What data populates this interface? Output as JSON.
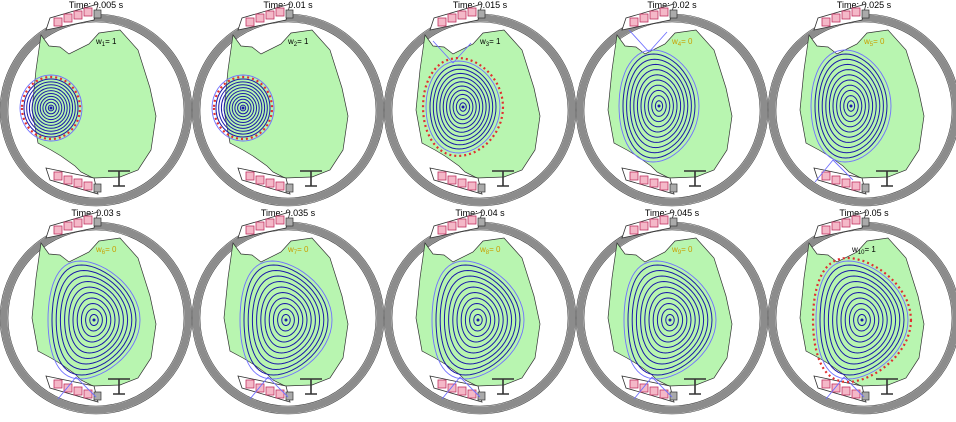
{
  "colors": {
    "vessel_ring": "#8c8c8c",
    "plasma_region": "#b8f5b0",
    "flux_contours": "#1a1aa8",
    "boundary_guess": "#7070ff",
    "target_boundary": "#e03030",
    "weight_on_label": "#000000",
    "weight_off_label": "#c8a000",
    "coil_fill": "#f4b8c8",
    "coil_edge": "#c03060"
  },
  "panels": [
    {
      "title": "Time: 0.005 s",
      "weight": {
        "sub": "1",
        "eq": "= 1",
        "active": true
      },
      "shape": "circle",
      "xpoint": "none"
    },
    {
      "title": "Time: 0.01 s",
      "weight": {
        "sub": "2",
        "eq": "= 1",
        "active": true
      },
      "shape": "circle",
      "xpoint": "none"
    },
    {
      "title": "Time: 0.015 s",
      "weight": {
        "sub": "3",
        "eq": "= 1",
        "active": true
      },
      "shape": "egg",
      "xpoint": "upper"
    },
    {
      "title": "Time: 0.02 s",
      "weight": {
        "sub": "4",
        "eq": "= 0",
        "active": false
      },
      "shape": "ellipse",
      "xpoint": "upper"
    },
    {
      "title": "Time: 0.025 s",
      "weight": {
        "sub": "5",
        "eq": "= 0",
        "active": false
      },
      "shape": "ellipse",
      "xpoint": "lower"
    },
    {
      "title": "Time: 0.03 s",
      "weight": {
        "sub": "6",
        "eq": "= 0",
        "active": false
      },
      "shape": "dshape",
      "xpoint": "lower"
    },
    {
      "title": "Time: 0.035 s",
      "weight": {
        "sub": "7",
        "eq": "= 0",
        "active": false
      },
      "shape": "dshape",
      "xpoint": "lower"
    },
    {
      "title": "Time: 0.04 s",
      "weight": {
        "sub": "8",
        "eq": "= 0",
        "active": false
      },
      "shape": "dshape",
      "xpoint": "lower"
    },
    {
      "title": "Time: 0.045 s",
      "weight": {
        "sub": "9",
        "eq": "= 0",
        "active": false
      },
      "shape": "dshape",
      "xpoint": "lower"
    },
    {
      "title": "Time: 0.05 s",
      "weight": {
        "sub": "10",
        "eq": "= 1",
        "active": true
      },
      "shape": "dshape",
      "xpoint": "lower"
    }
  ]
}
